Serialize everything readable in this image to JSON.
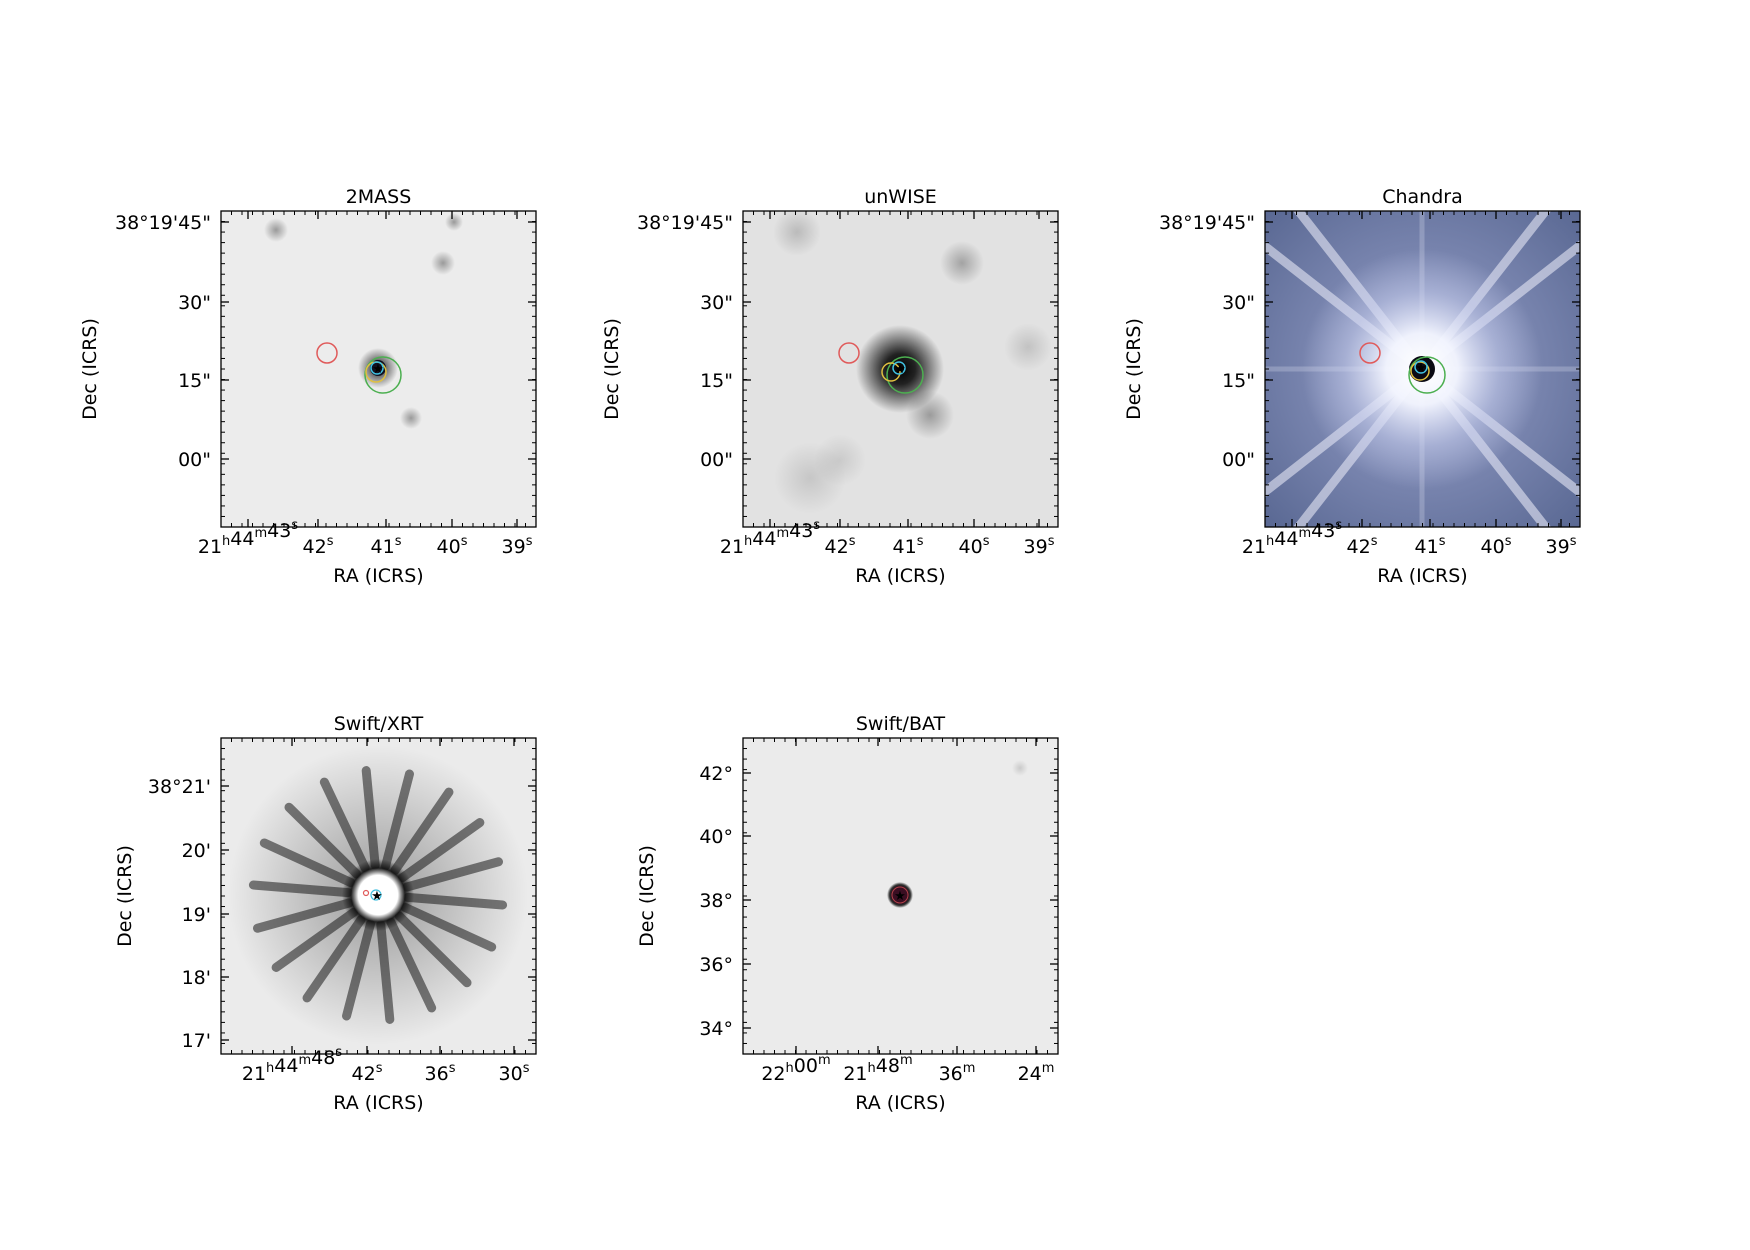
{
  "chart_data": [
    {
      "type": "image",
      "title": "2MASS",
      "xlabel": "RA (ICRS)",
      "ylabel": "Dec (ICRS)",
      "xticks": [
        {
          "main": "21",
          "sup1": "h",
          "mid": "44",
          "sup2": "m",
          "tail": "43",
          "sup3": "s"
        },
        {
          "main": "42",
          "sup1": "s"
        },
        {
          "main": "41",
          "sup1": "s"
        },
        {
          "main": "40",
          "sup1": "s"
        },
        {
          "main": "39",
          "sup1": "s"
        }
      ],
      "yticks": [
        "38°19'45\"",
        "30\"",
        "15\"",
        "00\""
      ],
      "background": "light-grey",
      "colors": {
        "red_circle": "#e05a5a",
        "green_circle": "#4caf50",
        "yellow_circle": "#e0c040",
        "star": "#f0a030",
        "cyan_mark": "#40c0e0"
      }
    },
    {
      "type": "image",
      "title": "unWISE",
      "xlabel": "RA (ICRS)",
      "ylabel": "Dec (ICRS)",
      "xticks": [
        {
          "main": "21",
          "sup1": "h",
          "mid": "44",
          "sup2": "m",
          "tail": "43",
          "sup3": "s"
        },
        {
          "main": "42",
          "sup1": "s"
        },
        {
          "main": "41",
          "sup1": "s"
        },
        {
          "main": "40",
          "sup1": "s"
        },
        {
          "main": "39",
          "sup1": "s"
        }
      ],
      "yticks": [
        "38°19'45\"",
        "30\"",
        "15\"",
        "00\""
      ],
      "background": "grey"
    },
    {
      "type": "image",
      "title": "Chandra",
      "xlabel": "RA (ICRS)",
      "ylabel": "Dec (ICRS)",
      "xticks": [
        {
          "main": "21",
          "sup1": "h",
          "mid": "44",
          "sup2": "m",
          "tail": "43",
          "sup3": "s"
        },
        {
          "main": "42",
          "sup1": "s"
        },
        {
          "main": "41",
          "sup1": "s"
        },
        {
          "main": "40",
          "sup1": "s"
        },
        {
          "main": "39",
          "sup1": "s"
        }
      ],
      "yticks": [
        "38°19'45\"",
        "30\"",
        "15\"",
        "00\""
      ],
      "background": "blue-purple",
      "colors": {
        "glow": "#ffffff",
        "field": "#6a78a8"
      }
    },
    {
      "type": "image",
      "title": "Swift/XRT",
      "xlabel": "RA (ICRS)",
      "ylabel": "Dec (ICRS)",
      "xticks": [
        {
          "main": "21",
          "sup1": "h",
          "mid": "44",
          "sup2": "m",
          "tail": "48",
          "sup3": "s"
        },
        {
          "main": "42",
          "sup1": "s"
        },
        {
          "main": "36",
          "sup1": "s"
        },
        {
          "main": "30",
          "sup1": "s"
        }
      ],
      "yticks": [
        "38°21'",
        "20'",
        "19'",
        "18'",
        "17'"
      ],
      "background": "light-grey"
    },
    {
      "type": "image",
      "title": "Swift/BAT",
      "xlabel": "RA (ICRS)",
      "ylabel": "Dec (ICRS)",
      "xticks": [
        {
          "main": "22",
          "sup1": "h",
          "mid": "00",
          "sup2": "m"
        },
        {
          "main": "21",
          "sup1": "h",
          "mid": "48",
          "sup2": "m"
        },
        {
          "main": "36",
          "sup1": "m"
        },
        {
          "main": "24",
          "sup1": "m"
        }
      ],
      "yticks": [
        "42°",
        "40°",
        "38°",
        "36°",
        "34°"
      ],
      "background": "light-grey"
    }
  ]
}
